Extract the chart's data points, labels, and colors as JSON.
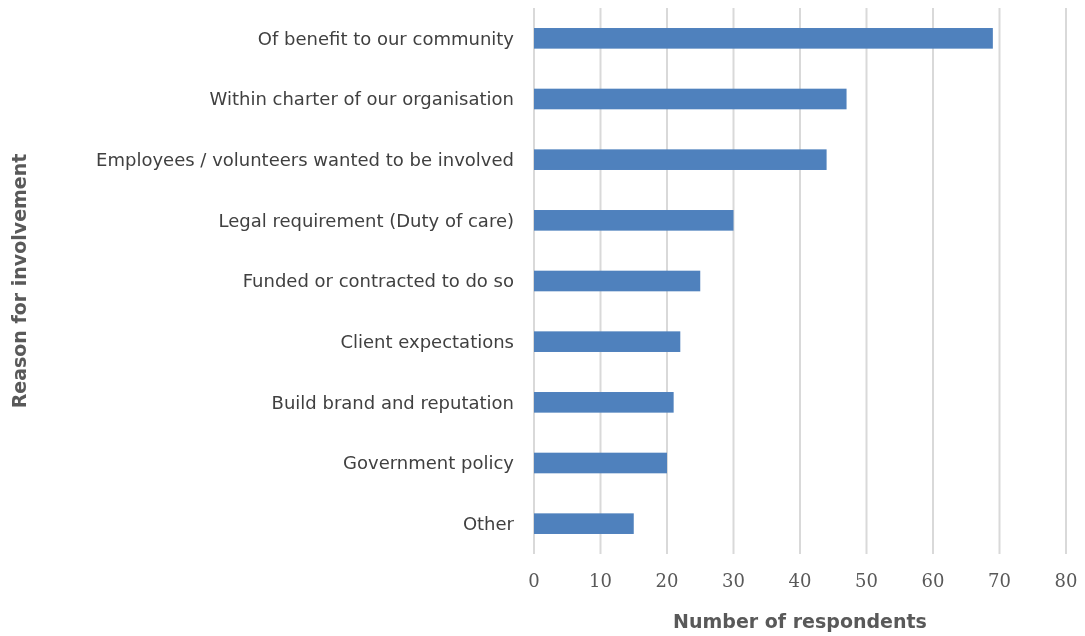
{
  "chart_data": {
    "type": "bar",
    "orientation": "horizontal",
    "xlabel": "Number of respondents",
    "ylabel": "Reason for involvement",
    "categories": [
      "Of benefit to our community",
      "Within charter of our organisation",
      "Employees / volunteers wanted to be involved",
      "Legal requirement (Duty of care)",
      "Funded or contracted to do so",
      "Client expectations",
      "Build brand and reputation",
      "Government policy",
      "Other"
    ],
    "values": [
      69,
      47,
      44,
      30,
      25,
      22,
      21,
      20,
      15
    ],
    "color": "#4f81bd",
    "xlim": [
      0,
      80
    ],
    "xticks": [
      0,
      10,
      20,
      30,
      40,
      50,
      60,
      70,
      80
    ],
    "grid": "x"
  }
}
